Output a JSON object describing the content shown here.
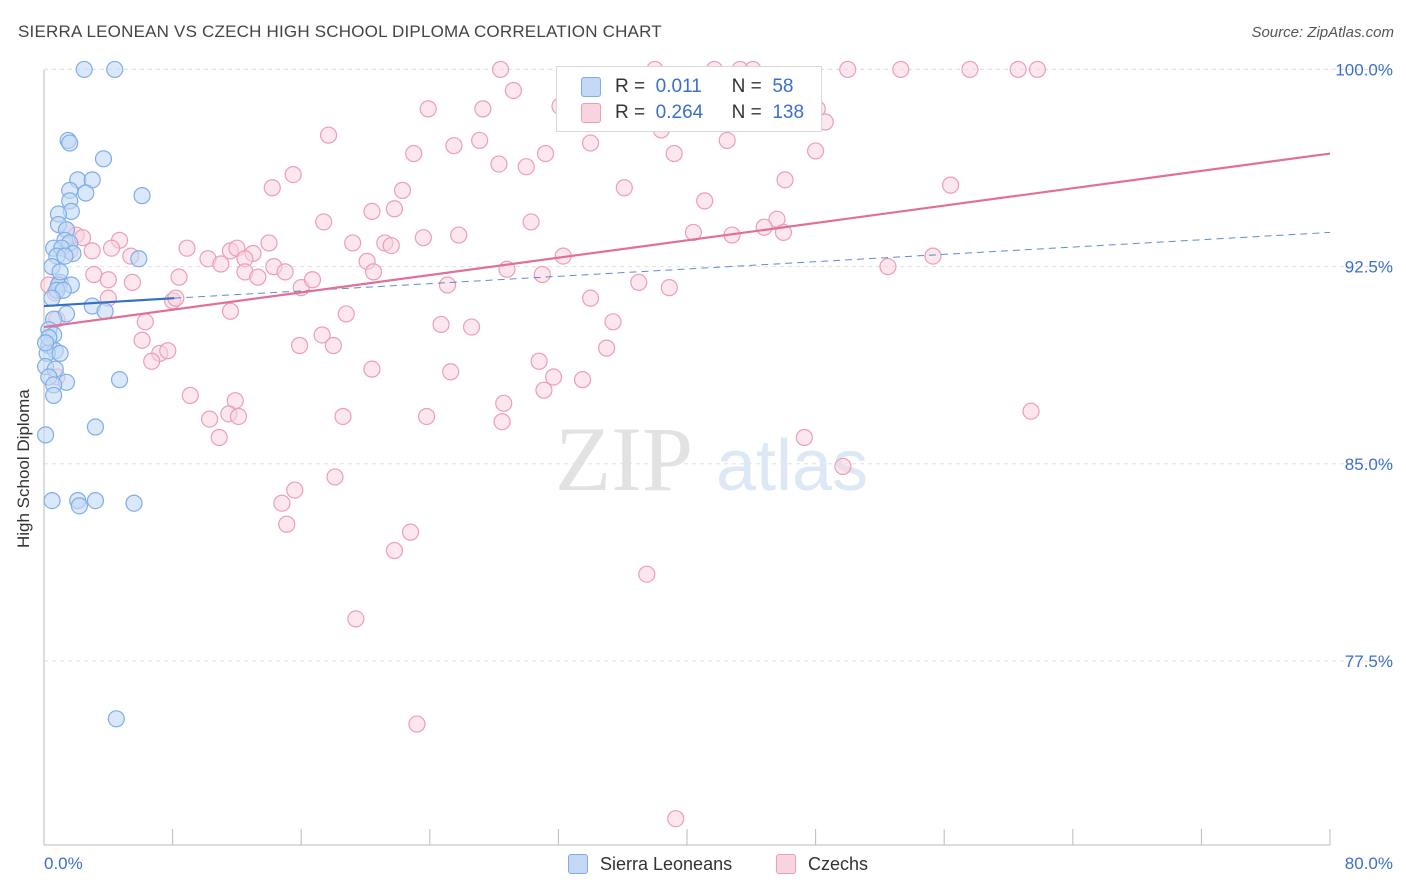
{
  "title": "SIERRA LEONEAN VS CZECH HIGH SCHOOL DIPLOMA CORRELATION CHART",
  "source": "Source: ZipAtlas.com",
  "colors": {
    "blue": "#7eaee8",
    "blue_fill": "#c2d8f5",
    "blue_line": "#3570c7",
    "pink": "#ee9db6",
    "pink_fill": "#f8d4de",
    "pink_line": "#e07099",
    "tick_text": "#3b6fcf",
    "grid": "#e0e0e0"
  },
  "legend_top": {
    "rows": [
      {
        "r_label": "R =",
        "r_value": "0.011",
        "n_label": "N =",
        "n_value": "58"
      },
      {
        "r_label": "R =",
        "r_value": "0.264",
        "n_label": "N =",
        "n_value": "138"
      }
    ]
  },
  "legend_bottom": {
    "items": [
      {
        "label": "Sierra Leoneans"
      },
      {
        "label": "Czechs"
      }
    ]
  },
  "watermark": {
    "part1": "ZIP",
    "part2": "atlas"
  },
  "chart_data": {
    "type": "scatter",
    "title": "SIERRA LEONEAN VS CZECH HIGH SCHOOL DIPLOMA CORRELATION CHART",
    "xlabel": "",
    "ylabel": "High School Diploma",
    "xlim": [
      0,
      80
    ],
    "ylim": [
      70.5,
      101.5
    ],
    "x_tick_labels": [
      "0.0%",
      "80.0%"
    ],
    "y_ticks": [
      77.5,
      85.0,
      92.5,
      100.0
    ],
    "y_tick_labels": [
      "77.5%",
      "85.0%",
      "92.5%",
      "100.0%"
    ],
    "legend_position": "bottom",
    "series": [
      {
        "name": "Sierra Leoneans",
        "R": 0.011,
        "N": 58,
        "trend_solid": {
          "x": [
            0,
            8.1
          ],
          "y": [
            91.0,
            91.3
          ]
        },
        "trend_dashed": {
          "x": [
            8.1,
            80
          ],
          "y": [
            91.3,
            93.8
          ]
        },
        "points": [
          [
            2.5,
            100
          ],
          [
            4.4,
            100
          ],
          [
            1.5,
            97.3
          ],
          [
            1.6,
            97.2
          ],
          [
            3.7,
            96.6
          ],
          [
            2.1,
            95.8
          ],
          [
            3.0,
            95.8
          ],
          [
            1.6,
            95.4
          ],
          [
            2.6,
            95.3
          ],
          [
            6.1,
            95.2
          ],
          [
            1.6,
            95.0
          ],
          [
            1.7,
            94.6
          ],
          [
            0.9,
            94.5
          ],
          [
            0.9,
            94.1
          ],
          [
            1.4,
            93.9
          ],
          [
            1.3,
            93.5
          ],
          [
            1.6,
            93.4
          ],
          [
            0.6,
            93.2
          ],
          [
            1.1,
            93.2
          ],
          [
            1.8,
            93.0
          ],
          [
            0.8,
            92.9
          ],
          [
            1.3,
            92.9
          ],
          [
            5.9,
            92.8
          ],
          [
            0.5,
            92.5
          ],
          [
            1.0,
            91.9
          ],
          [
            0.9,
            91.8
          ],
          [
            1.7,
            91.8
          ],
          [
            0.8,
            91.6
          ],
          [
            1.2,
            91.6
          ],
          [
            0.5,
            91.3
          ],
          [
            3.0,
            91.0
          ],
          [
            1.4,
            90.7
          ],
          [
            3.8,
            90.8
          ],
          [
            0.6,
            90.5
          ],
          [
            0.3,
            90.1
          ],
          [
            0.6,
            89.9
          ],
          [
            0.3,
            89.5
          ],
          [
            0.7,
            89.3
          ],
          [
            0.2,
            89.2
          ],
          [
            1.0,
            89.2
          ],
          [
            0.1,
            88.7
          ],
          [
            0.7,
            88.6
          ],
          [
            0.3,
            88.3
          ],
          [
            1.4,
            88.1
          ],
          [
            4.7,
            88.2
          ],
          [
            0.6,
            88.0
          ],
          [
            0.6,
            87.6
          ],
          [
            3.2,
            86.4
          ],
          [
            0.1,
            86.1
          ],
          [
            0.5,
            83.6
          ],
          [
            2.1,
            83.6
          ],
          [
            3.2,
            83.6
          ],
          [
            5.6,
            83.5
          ],
          [
            2.2,
            83.4
          ],
          [
            4.5,
            75.3
          ],
          [
            0.3,
            89.8
          ],
          [
            0.1,
            89.6
          ],
          [
            1.0,
            92.3
          ]
        ]
      },
      {
        "name": "Czechs",
        "R": 0.264,
        "N": 138,
        "trend": {
          "x": [
            0,
            80
          ],
          "y": [
            90.2,
            96.8
          ]
        },
        "points": [
          [
            28.4,
            100
          ],
          [
            38.0,
            100
          ],
          [
            41.7,
            100
          ],
          [
            43.3,
            100
          ],
          [
            44.1,
            100
          ],
          [
            50.0,
            100
          ],
          [
            53.3,
            100
          ],
          [
            57.6,
            100
          ],
          [
            60.6,
            100
          ],
          [
            61.8,
            100
          ],
          [
            29.2,
            99.2
          ],
          [
            34.8,
            99.2
          ],
          [
            23.9,
            98.5
          ],
          [
            27.3,
            98.5
          ],
          [
            32.1,
            98.6
          ],
          [
            40.3,
            98.5
          ],
          [
            48.1,
            98.5
          ],
          [
            48.6,
            98.0
          ],
          [
            38.4,
            97.7
          ],
          [
            17.7,
            97.5
          ],
          [
            25.5,
            97.1
          ],
          [
            27.1,
            97.3
          ],
          [
            34.0,
            97.2
          ],
          [
            42.5,
            97.3
          ],
          [
            23.0,
            96.8
          ],
          [
            31.2,
            96.8
          ],
          [
            39.2,
            96.8
          ],
          [
            48.0,
            96.9
          ],
          [
            28.3,
            96.4
          ],
          [
            30.0,
            96.3
          ],
          [
            15.5,
            96.0
          ],
          [
            46.1,
            95.8
          ],
          [
            14.2,
            95.5
          ],
          [
            36.1,
            95.5
          ],
          [
            56.4,
            95.6
          ],
          [
            22.3,
            95.4
          ],
          [
            41.1,
            95.0
          ],
          [
            20.4,
            94.6
          ],
          [
            21.8,
            94.7
          ],
          [
            17.4,
            94.2
          ],
          [
            30.3,
            94.2
          ],
          [
            45.6,
            94.3
          ],
          [
            44.8,
            94.0
          ],
          [
            42.8,
            93.7
          ],
          [
            25.8,
            93.7
          ],
          [
            40.4,
            93.8
          ],
          [
            46.0,
            93.8
          ],
          [
            1.4,
            93.9
          ],
          [
            2.0,
            93.7
          ],
          [
            2.4,
            93.6
          ],
          [
            4.7,
            93.5
          ],
          [
            4.2,
            93.2
          ],
          [
            8.9,
            93.2
          ],
          [
            11.6,
            93.1
          ],
          [
            12.0,
            93.2
          ],
          [
            13.0,
            93.0
          ],
          [
            19.2,
            93.4
          ],
          [
            21.2,
            93.4
          ],
          [
            23.6,
            93.6
          ],
          [
            1.6,
            93.1
          ],
          [
            3.0,
            93.1
          ],
          [
            14.0,
            93.4
          ],
          [
            21.6,
            93.3
          ],
          [
            5.4,
            92.9
          ],
          [
            10.2,
            92.8
          ],
          [
            12.5,
            92.8
          ],
          [
            14.3,
            92.5
          ],
          [
            20.1,
            92.7
          ],
          [
            32.3,
            92.9
          ],
          [
            11.0,
            92.6
          ],
          [
            12.5,
            92.3
          ],
          [
            13.3,
            92.1
          ],
          [
            15.0,
            92.3
          ],
          [
            20.5,
            92.3
          ],
          [
            28.8,
            92.4
          ],
          [
            31.0,
            92.2
          ],
          [
            52.5,
            92.5
          ],
          [
            55.3,
            92.9
          ],
          [
            3.1,
            92.2
          ],
          [
            4.0,
            92.0
          ],
          [
            5.5,
            91.9
          ],
          [
            8.4,
            92.1
          ],
          [
            16.0,
            91.7
          ],
          [
            16.7,
            92.0
          ],
          [
            25.1,
            91.8
          ],
          [
            37.0,
            91.9
          ],
          [
            38.9,
            91.7
          ],
          [
            0.3,
            91.8
          ],
          [
            0.7,
            91.5
          ],
          [
            4.0,
            91.3
          ],
          [
            8.0,
            91.2
          ],
          [
            8.2,
            91.3
          ],
          [
            34.0,
            91.3
          ],
          [
            11.6,
            90.8
          ],
          [
            18.8,
            90.7
          ],
          [
            0.8,
            90.5
          ],
          [
            6.3,
            90.4
          ],
          [
            24.7,
            90.3
          ],
          [
            26.6,
            90.2
          ],
          [
            35.4,
            90.4
          ],
          [
            17.3,
            89.9
          ],
          [
            15.9,
            89.5
          ],
          [
            18.0,
            89.5
          ],
          [
            6.1,
            89.7
          ],
          [
            35.0,
            89.4
          ],
          [
            7.2,
            89.2
          ],
          [
            7.7,
            89.3
          ],
          [
            6.7,
            88.9
          ],
          [
            30.8,
            88.9
          ],
          [
            20.4,
            88.6
          ],
          [
            25.3,
            88.5
          ],
          [
            31.7,
            88.3
          ],
          [
            33.5,
            88.2
          ],
          [
            0.8,
            88.3
          ],
          [
            31.1,
            87.8
          ],
          [
            9.1,
            87.6
          ],
          [
            11.9,
            87.4
          ],
          [
            28.6,
            87.3
          ],
          [
            11.5,
            86.9
          ],
          [
            12.1,
            86.8
          ],
          [
            10.3,
            86.7
          ],
          [
            18.6,
            86.8
          ],
          [
            23.8,
            86.8
          ],
          [
            28.5,
            86.6
          ],
          [
            61.4,
            87.0
          ],
          [
            10.9,
            86.0
          ],
          [
            47.3,
            86.0
          ],
          [
            49.7,
            84.9
          ],
          [
            18.1,
            84.5
          ],
          [
            15.6,
            84.0
          ],
          [
            14.8,
            83.5
          ],
          [
            15.1,
            82.7
          ],
          [
            22.8,
            82.4
          ],
          [
            21.8,
            81.7
          ],
          [
            37.5,
            80.8
          ],
          [
            19.4,
            79.1
          ],
          [
            23.2,
            75.1
          ],
          [
            39.3,
            71.5
          ]
        ]
      }
    ]
  }
}
